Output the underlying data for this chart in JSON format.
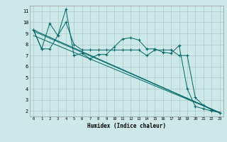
{
  "title": "",
  "xlabel": "Humidex (Indice chaleur)",
  "ylabel": "",
  "bg_color": "#cce8e8",
  "grid_color": "#aacccc",
  "line_color": "#006666",
  "xlim": [
    -0.5,
    23.5
  ],
  "ylim": [
    1.5,
    11.5
  ],
  "xticks": [
    0,
    1,
    2,
    3,
    4,
    5,
    6,
    7,
    8,
    9,
    10,
    11,
    12,
    13,
    14,
    15,
    16,
    17,
    18,
    19,
    20,
    21,
    22,
    23
  ],
  "yticks": [
    2,
    3,
    4,
    5,
    6,
    7,
    8,
    9,
    10,
    11
  ],
  "line1_x": [
    0,
    1,
    2,
    3,
    4,
    5,
    6,
    7,
    8,
    9,
    10,
    11,
    12,
    13,
    14,
    15,
    16,
    17,
    18,
    19,
    20,
    21,
    22,
    23
  ],
  "line1_y": [
    9.3,
    7.6,
    7.6,
    8.8,
    11.2,
    7.0,
    7.2,
    6.7,
    7.1,
    7.1,
    7.8,
    8.5,
    8.6,
    8.4,
    7.6,
    7.6,
    7.3,
    7.2,
    7.9,
    4.0,
    2.4,
    2.2,
    2.0,
    1.85
  ],
  "line2_x": [
    0,
    1,
    2,
    3,
    4,
    5,
    6,
    7,
    8,
    9,
    10,
    11,
    12,
    13,
    14,
    15,
    16,
    17,
    18,
    19,
    20,
    21,
    22,
    23
  ],
  "line2_y": [
    9.3,
    7.6,
    9.9,
    8.8,
    10.0,
    8.0,
    7.5,
    7.5,
    7.5,
    7.5,
    7.5,
    7.5,
    7.5,
    7.5,
    7.0,
    7.5,
    7.5,
    7.5,
    7.0,
    7.0,
    3.2,
    2.5,
    2.1,
    1.85
  ],
  "line3_x": [
    0,
    23
  ],
  "line3_y": [
    9.3,
    1.85
  ],
  "line4_x": [
    0,
    23
  ],
  "line4_y": [
    9.2,
    1.85
  ],
  "line5_x": [
    0,
    23
  ],
  "line5_y": [
    8.8,
    1.85
  ]
}
